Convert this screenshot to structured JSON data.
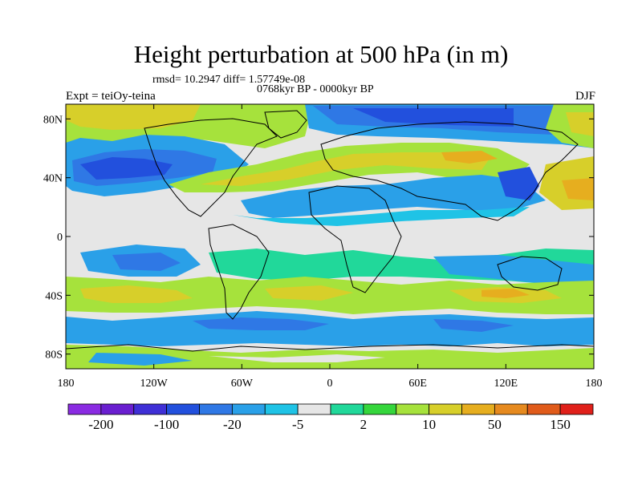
{
  "figure": {
    "title": "Height perturbation at 500 hPa (in m)",
    "stats": "rmsd= 10.2947 diff= 1.57749e-08",
    "period": "0768kyr BP - 0000kyr BP",
    "experiment": "Expt = teiOy-teina",
    "season": "DJF"
  },
  "axes": {
    "y_ticks": [
      "80N",
      "40N",
      "0",
      "40S",
      "80S"
    ],
    "y_values": [
      80,
      40,
      0,
      -40,
      -80
    ],
    "x_ticks": [
      "180",
      "120W",
      "60W",
      "0",
      "60E",
      "120E",
      "180"
    ],
    "x_values": [
      -180,
      -120,
      -60,
      0,
      60,
      120,
      180
    ],
    "lon_range": [
      -180,
      180
    ],
    "lat_range": [
      -90,
      90
    ]
  },
  "colorbar": {
    "colors": [
      "#8a2be2",
      "#6a1fd0",
      "#3f2fd6",
      "#2250dd",
      "#2f78e5",
      "#2aa0e8",
      "#1fc3e6",
      "#e6e6e6",
      "#21d89a",
      "#35d63c",
      "#a6e23c",
      "#d7cf2a",
      "#e6ae1f",
      "#e68a1f",
      "#e05b1a",
      "#e0201a"
    ],
    "labels": [
      "-200",
      "-100",
      "-20",
      "-5",
      "2",
      "10",
      "50",
      "150"
    ]
  },
  "palette": {
    "neg_strong": "#2250dd",
    "neg_mid": "#2f78e5",
    "neg_light": "#2aa0e8",
    "neg_faint": "#1fc3e6",
    "neutral": "#e6e6e6",
    "pos_faint": "#21d89a",
    "pos_light": "#35d63c",
    "pos_mid": "#a6e23c",
    "pos_strong": "#d7cf2a",
    "pos_peak": "#e6ae1f"
  }
}
